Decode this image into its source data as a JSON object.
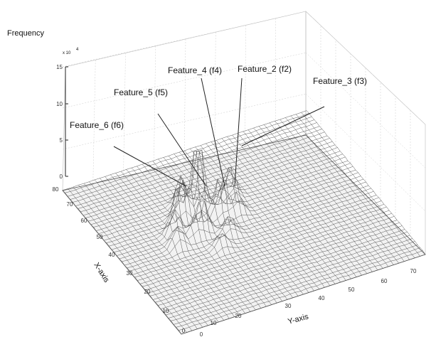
{
  "chart_data": {
    "type": "surface",
    "zlabel": "Frequency",
    "xlabel": "X-axis",
    "ylabel": "Y-axis",
    "z_scale_label": "x 10",
    "z_scale_exponent": "4",
    "z_ticks": [
      "0",
      "5",
      "10",
      "15"
    ],
    "x_ticks": [
      "0",
      "10",
      "20",
      "30",
      "40",
      "50",
      "60",
      "70",
      "80"
    ],
    "y_ticks": [
      "0",
      "10",
      "20",
      "30",
      "40",
      "50",
      "60",
      "70"
    ],
    "grid": true,
    "annotations": [
      {
        "name": "f2",
        "label": "Feature_2 (f2)"
      },
      {
        "name": "f3",
        "label": "Feature_3 (f3)"
      },
      {
        "name": "f4",
        "label": "Feature_4 (f4)"
      },
      {
        "name": "f5",
        "label": "Feature_5 (f5)"
      },
      {
        "name": "f6",
        "label": "Feature_6 (f6)"
      }
    ]
  }
}
